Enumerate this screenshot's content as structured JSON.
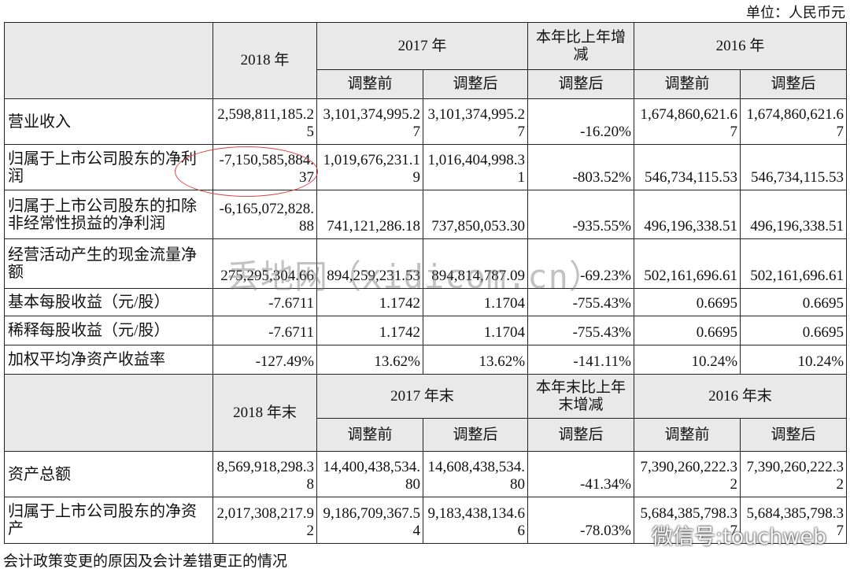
{
  "unit": "单位：人民币元",
  "sections": [
    {
      "header": {
        "current": "2018 年",
        "prev": "2017 年",
        "change": "本年比上年增减",
        "prev2": "2016 年",
        "sub": [
          "调整前",
          "调整后",
          "调整后",
          "调整前",
          "调整后"
        ]
      },
      "rows": [
        [
          "营业收入",
          "2,598,811,185.25",
          "3,101,374,995.27",
          "3,101,374,995.27",
          "-16.20%",
          "1,674,860,621.67",
          "1,674,860,621.67"
        ],
        [
          "归属于上市公司股东的净利润",
          "-7,150,585,884.37",
          "1,019,676,231.19",
          "1,016,404,998.31",
          "-803.52%",
          "546,734,115.53",
          "546,734,115.53"
        ],
        [
          "归属于上市公司股东的扣除非经常性损益的净利润",
          "-6,165,072,828.88",
          "741,121,286.18",
          "737,850,053.30",
          "-935.55%",
          "496,196,338.51",
          "496,196,338.51"
        ],
        [
          "经营活动产生的现金流量净额",
          "275,295,304.66",
          "894,259,231.53",
          "894,814,787.09",
          "-69.23%",
          "502,161,696.61",
          "502,161,696.61"
        ],
        [
          "基本每股收益（元/股）",
          "-7.6711",
          "1.1742",
          "1.1704",
          "-755.43%",
          "0.6695",
          "0.6695"
        ],
        [
          "稀释每股收益（元/股）",
          "-7.6711",
          "1.1742",
          "1.1704",
          "-755.43%",
          "0.6695",
          "0.6695"
        ],
        [
          "加权平均净资产收益率",
          "-127.49%",
          "13.62%",
          "13.62%",
          "-141.11%",
          "10.24%",
          "10.24%"
        ]
      ]
    },
    {
      "header": {
        "current": "2018 年末",
        "prev": "2017 年末",
        "change": "本年末比上年末增减",
        "prev2": "2016 年末",
        "sub": [
          "调整前",
          "调整后",
          "调整后",
          "调整前",
          "调整后"
        ]
      },
      "rows": [
        [
          "资产总额",
          "8,569,918,298.38",
          "14,400,438,534.80",
          "14,608,438,534.80",
          "-41.34%",
          "7,390,260,222.32",
          "7,390,260,222.32"
        ],
        [
          "归属于上市公司股东的净资产",
          "2,017,308,217.92",
          "9,186,709,367.54",
          "9,183,438,134.66",
          "-78.03%",
          "5,684,385,798.37",
          "5,684,385,798.37"
        ]
      ]
    }
  ],
  "footer": "会计政策变更的原因及会计差错更正的情况",
  "watermarks": [
    "丢地网（xidicom.cn）",
    "微信号:touchweb"
  ]
}
